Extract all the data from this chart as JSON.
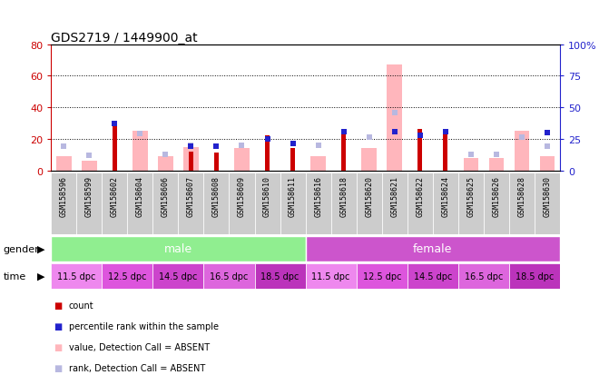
{
  "title": "GDS2719 / 1449900_at",
  "samples": [
    "GSM158596",
    "GSM158599",
    "GSM158602",
    "GSM158604",
    "GSM158606",
    "GSM158607",
    "GSM158608",
    "GSM158609",
    "GSM158610",
    "GSM158611",
    "GSM158616",
    "GSM158618",
    "GSM158620",
    "GSM158621",
    "GSM158622",
    "GSM158624",
    "GSM158625",
    "GSM158626",
    "GSM158628",
    "GSM158630"
  ],
  "count_values": [
    0,
    0,
    31,
    0,
    0,
    12,
    11,
    0,
    22,
    14,
    0,
    26,
    0,
    0,
    26,
    26,
    0,
    0,
    0,
    0
  ],
  "rank_values": [
    0,
    0,
    37,
    0,
    0,
    19,
    19,
    0,
    25,
    21,
    0,
    31,
    0,
    31,
    28,
    31,
    0,
    0,
    0,
    30
  ],
  "absent_value_values": [
    9,
    6,
    0,
    25,
    9,
    15,
    0,
    14,
    0,
    0,
    9,
    0,
    14,
    67,
    0,
    0,
    8,
    8,
    25,
    9
  ],
  "absent_rank_values": [
    19,
    12,
    0,
    29,
    13,
    20,
    0,
    20,
    0,
    0,
    20,
    0,
    26,
    46,
    0,
    0,
    13,
    13,
    26,
    19
  ],
  "ylim_left": [
    0,
    80
  ],
  "ylim_right": [
    0,
    100
  ],
  "yticks_left": [
    0,
    20,
    40,
    60,
    80
  ],
  "yticks_right": [
    0,
    25,
    50,
    75,
    100
  ],
  "color_count": "#cc0000",
  "color_rank": "#2222cc",
  "color_absent_value": "#ffb6bc",
  "color_absent_rank": "#b8b8e0",
  "color_male_bg": "#90ee90",
  "color_female_bg": "#cc55cc",
  "color_time_1": "#ee88ee",
  "color_time_2": "#dd55dd",
  "color_time_3": "#cc44cc",
  "color_time_4": "#dd66dd",
  "color_time_5": "#bb33bb",
  "color_left_axis": "#cc0000",
  "color_right_axis": "#2222cc",
  "xtick_bg": "#cccccc",
  "white": "#ffffff"
}
